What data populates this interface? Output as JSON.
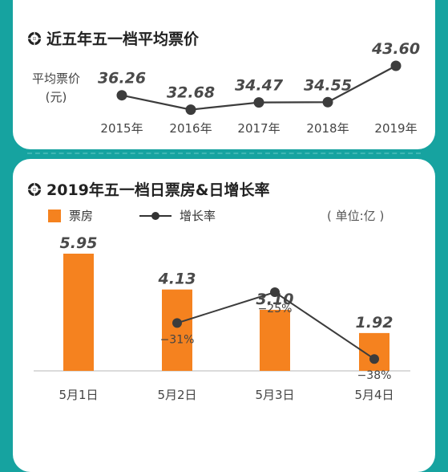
{
  "chart_data": [
    {
      "type": "line",
      "title": "近五年五一档平均票价",
      "ylabel": "平均票价\n(元)",
      "categories": [
        "2015年",
        "2016年",
        "2017年",
        "2018年",
        "2019年"
      ],
      "values": [
        36.26,
        32.68,
        34.47,
        34.55,
        43.6
      ],
      "value_labels": [
        "36.26",
        "32.68",
        "34.47",
        "34.55",
        "43.60"
      ],
      "ylim": [
        30,
        46
      ],
      "color": "#3c3c3c"
    },
    {
      "type": "bar",
      "title": "2019年五一档日票房&日增长率",
      "categories": [
        "5月1日",
        "5月2日",
        "5月3日",
        "5月4日"
      ],
      "series": [
        {
          "name": "票房",
          "values": [
            5.95,
            4.13,
            3.1,
            1.92
          ],
          "value_labels": [
            "5.95",
            "4.13",
            "3.10",
            "1.92"
          ],
          "color": "#f5821f"
        },
        {
          "name": "增长率",
          "values": [
            null,
            -31,
            -25,
            -38
          ],
          "value_labels": [
            "",
            "−31%",
            "−25%",
            "−38%"
          ],
          "color": "#3c3c3c"
        }
      ],
      "unit": "( 单位:亿 )",
      "ylim": [
        0,
        6.6
      ],
      "y2lim": [
        -45,
        -15
      ]
    }
  ]
}
